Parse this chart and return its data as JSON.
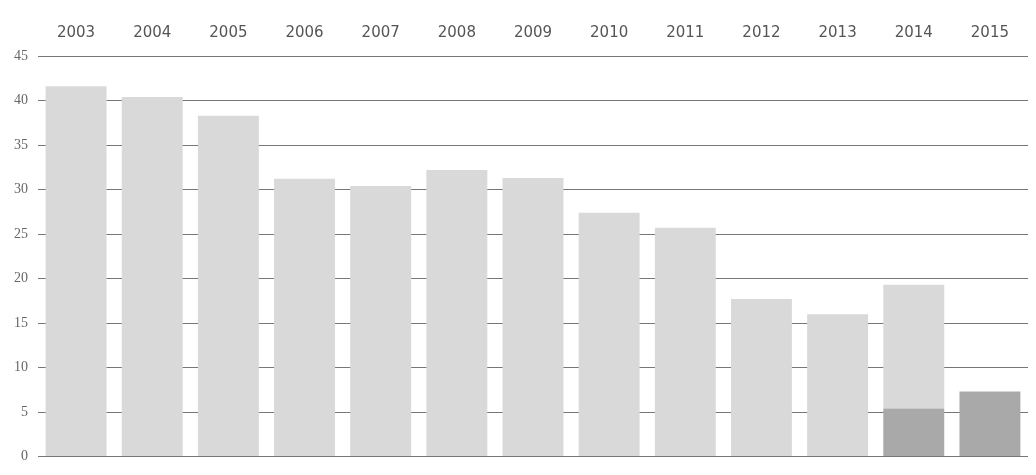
{
  "chart_data": {
    "type": "bar",
    "stacked": true,
    "categories": [
      "2003",
      "2004",
      "2005",
      "2006",
      "2007",
      "2008",
      "2009",
      "2010",
      "2011",
      "2012",
      "2013",
      "2014",
      "2015"
    ],
    "series": [
      {
        "color": "#a9a9a9",
        "values": [
          null,
          null,
          null,
          null,
          null,
          null,
          null,
          null,
          null,
          null,
          null,
          5.4,
          7.3
        ]
      },
      {
        "color": "#d9d9d9",
        "values": [
          41.6,
          40.4,
          38.3,
          31.2,
          30.4,
          32.2,
          31.3,
          27.4,
          25.7,
          17.7,
          16.0,
          13.9,
          null
        ]
      }
    ],
    "ylim": [
      0,
      45
    ],
    "yticks": [
      0,
      5,
      10,
      15,
      20,
      25,
      30,
      35,
      40,
      45
    ],
    "grid": "y",
    "legend": false
  }
}
